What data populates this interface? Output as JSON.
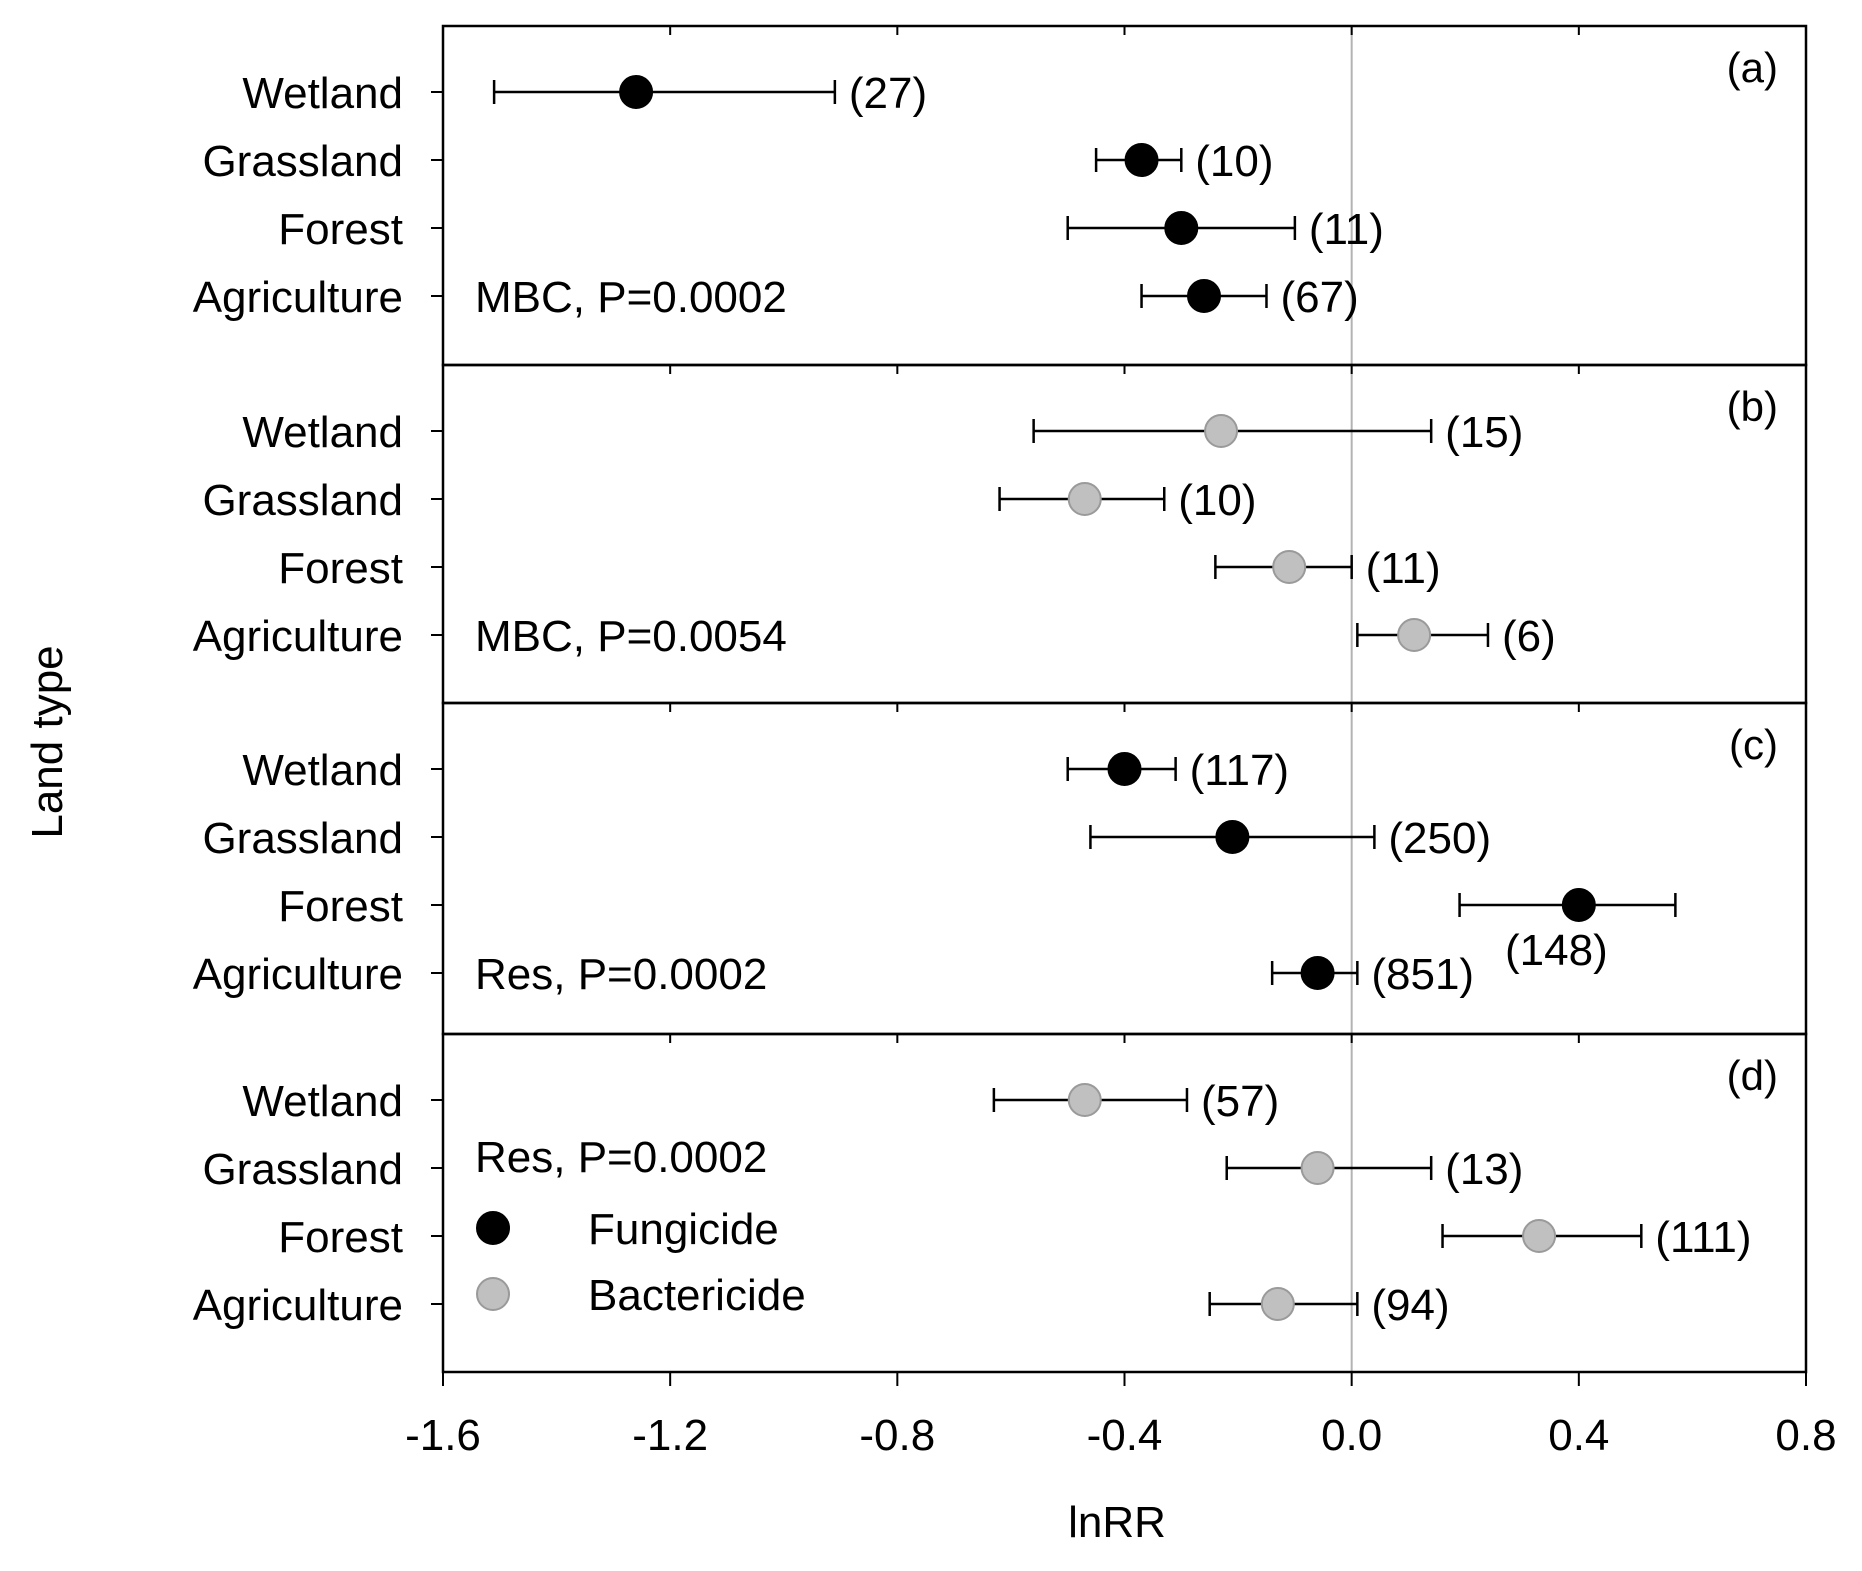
{
  "chart_data": {
    "type": "forest",
    "ylabel": "Land type",
    "xlabel": "lnRR",
    "xlim": [
      -1.6,
      0.8
    ],
    "xticks": [
      "-1.6",
      "-1.2",
      "-0.8",
      "-0.4",
      "0.0",
      "0.4",
      "0.8"
    ],
    "xtick_values": [
      -1.6,
      -1.2,
      -0.8,
      -0.4,
      0.0,
      0.4,
      0.8
    ],
    "categories": [
      "Wetland",
      "Grassland",
      "Forest",
      "Agriculture"
    ],
    "colors": {
      "Fungicide": "#000000",
      "Bactericide": "#c0c0c0"
    },
    "legend": {
      "placement": "inside panel (d), left",
      "items": [
        {
          "label": "Fungicide",
          "series": "Fungicide"
        },
        {
          "label": "Bactericide",
          "series": "Bactericide"
        }
      ]
    },
    "panels": [
      {
        "tag": "(a)",
        "annotation": "MBC, P=0.0002",
        "series": "Fungicide",
        "points": [
          {
            "category": "Wetland",
            "mean": -1.26,
            "low": -1.51,
            "high": -0.91,
            "n": "(27)"
          },
          {
            "category": "Grassland",
            "mean": -0.37,
            "low": -0.45,
            "high": -0.3,
            "n": "(10)"
          },
          {
            "category": "Forest",
            "mean": -0.3,
            "low": -0.5,
            "high": -0.1,
            "n": "(11)"
          },
          {
            "category": "Agriculture",
            "mean": -0.26,
            "low": -0.37,
            "high": -0.15,
            "n": "(67)"
          }
        ]
      },
      {
        "tag": "(b)",
        "annotation": "MBC, P=0.0054",
        "series": "Bactericide",
        "points": [
          {
            "category": "Wetland",
            "mean": -0.23,
            "low": -0.56,
            "high": 0.14,
            "n": "(15)"
          },
          {
            "category": "Grassland",
            "mean": -0.47,
            "low": -0.62,
            "high": -0.33,
            "n": "(10)"
          },
          {
            "category": "Forest",
            "mean": -0.11,
            "low": -0.24,
            "high": 0.0,
            "n": "(11)"
          },
          {
            "category": "Agriculture",
            "mean": 0.11,
            "low": 0.01,
            "high": 0.24,
            "n": "(6)"
          }
        ]
      },
      {
        "tag": "(c)",
        "annotation": "Res, P=0.0002",
        "series": "Fungicide",
        "points": [
          {
            "category": "Wetland",
            "mean": -0.4,
            "low": -0.5,
            "high": -0.31,
            "n": "(117)"
          },
          {
            "category": "Grassland",
            "mean": -0.21,
            "low": -0.46,
            "high": 0.04,
            "n": "(250)"
          },
          {
            "category": "Forest",
            "mean": 0.4,
            "low": 0.19,
            "high": 0.57,
            "n": "(148)"
          },
          {
            "category": "Agriculture",
            "mean": -0.06,
            "low": -0.14,
            "high": 0.01,
            "n": "(851)"
          }
        ]
      },
      {
        "tag": "(d)",
        "annotation": "Res, P=0.0002",
        "series": "Bactericide",
        "points": [
          {
            "category": "Wetland",
            "mean": -0.47,
            "low": -0.63,
            "high": -0.29,
            "n": "(57)"
          },
          {
            "category": "Grassland",
            "mean": -0.06,
            "low": -0.22,
            "high": 0.14,
            "n": "(13)"
          },
          {
            "category": "Forest",
            "mean": 0.33,
            "low": 0.16,
            "high": 0.51,
            "n": "(111)"
          },
          {
            "category": "Agriculture",
            "mean": -0.13,
            "low": -0.25,
            "high": 0.01,
            "n": "(94)"
          }
        ]
      }
    ]
  }
}
